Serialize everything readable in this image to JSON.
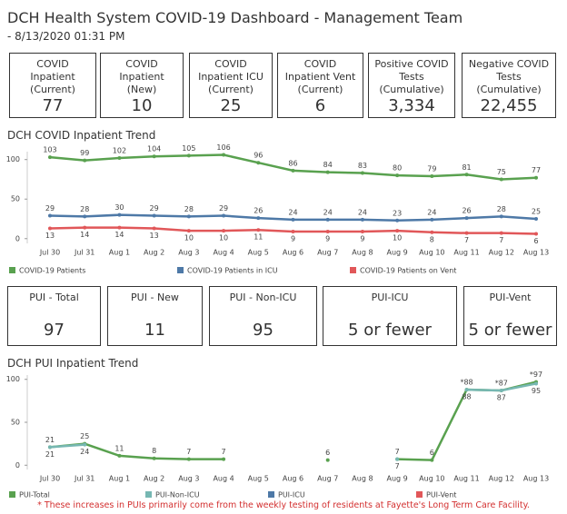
{
  "header": {
    "title": "DCH Health System COVID-19 Dashboard - Management Team",
    "subtitle": "- 8/13/2020 01:31 PM"
  },
  "cards_top": [
    {
      "label": "COVID Inpatient (Current)",
      "value": 77
    },
    {
      "label": "COVID Inpatient (New)",
      "value": 10
    },
    {
      "label": "COVID Inpatient ICU (Current)",
      "value": 25
    },
    {
      "label": "COVID Inpatient Vent (Current)",
      "value": 6
    },
    {
      "label": "Positive COVID Tests (Cumulative)",
      "value": "3,334"
    },
    {
      "label": "Negative COVID Tests (Cumulative)",
      "value": "22,455"
    }
  ],
  "cards_pui": [
    {
      "label": "PUI - Total",
      "value": 97
    },
    {
      "label": "PUI - New",
      "value": 11
    },
    {
      "label": "PUI - Non-ICU",
      "value": 95
    },
    {
      "label": "PUI-ICU",
      "value": "5 or fewer"
    },
    {
      "label": "PUI-Vent",
      "value": "5 or fewer"
    }
  ],
  "chart_data": [
    {
      "type": "line",
      "title": "DCH COVID Inpatient Trend",
      "categories": [
        "Jul 30",
        "Jul 31",
        "Aug 1",
        "Aug 2",
        "Aug 3",
        "Aug 4",
        "Aug 5",
        "Aug 6",
        "Aug 7",
        "Aug 8",
        "Aug 9",
        "Aug 10",
        "Aug 11",
        "Aug 12",
        "Aug 13"
      ],
      "ylim": [
        -6,
        110
      ],
      "yticks": [
        0,
        50,
        100
      ],
      "series": [
        {
          "name": "COVID-19 Patients",
          "color": "#59a14f",
          "label_pos": "above",
          "values": [
            103,
            99,
            102,
            104,
            105,
            106,
            96,
            86,
            84,
            83,
            80,
            79,
            81,
            75,
            77
          ]
        },
        {
          "name": "COVID-19 Patients in ICU",
          "color": "#4e79a7",
          "label_pos": "above",
          "values": [
            29,
            28,
            30,
            29,
            28,
            29,
            26,
            24,
            24,
            24,
            23,
            24,
            26,
            28,
            25
          ]
        },
        {
          "name": "COVID-19 Patients on Vent",
          "color": "#e15759",
          "label_pos": "below",
          "values": [
            13,
            14,
            14,
            13,
            10,
            10,
            11,
            9,
            9,
            9,
            10,
            8,
            7,
            7,
            6
          ]
        }
      ]
    },
    {
      "type": "line",
      "title": "DCH PUI Inpatient Trend",
      "categories": [
        "Jul 30",
        "Jul 31",
        "Aug 1",
        "Aug 2",
        "Aug 3",
        "Aug 4",
        "Aug 5",
        "Aug 6",
        "Aug 7",
        "Aug 8",
        "Aug 9",
        "Aug 10",
        "Aug 11",
        "Aug 12",
        "Aug 13"
      ],
      "ylim": [
        -5,
        105
      ],
      "yticks": [
        0,
        50,
        100
      ],
      "series": [
        {
          "name": "PUI-Total",
          "color": "#59a14f",
          "label_pos": "above",
          "values": [
            21,
            25,
            11,
            8,
            7,
            7,
            null,
            null,
            6,
            null,
            7,
            6,
            88,
            87,
            97
          ],
          "value_labels": [
            "21",
            "25",
            "11",
            "8",
            "7",
            "7",
            null,
            null,
            "6",
            null,
            "7",
            "6",
            "*88",
            "*87",
            "*97"
          ]
        },
        {
          "name": "PUI-Non-ICU",
          "color": "#76b7b2",
          "label_pos": "below",
          "values": [
            21,
            24,
            null,
            null,
            null,
            null,
            null,
            null,
            null,
            null,
            7,
            null,
            88,
            87,
            95
          ]
        },
        {
          "name": "PUI-ICU",
          "color": "#4e79a7",
          "label_pos": "below",
          "values": [
            null,
            null,
            null,
            null,
            null,
            null,
            null,
            null,
            null,
            null,
            null,
            null,
            null,
            null,
            null
          ]
        },
        {
          "name": "PUI-Vent",
          "color": "#e15759",
          "label_pos": "below",
          "values": [
            null,
            null,
            null,
            null,
            null,
            null,
            null,
            null,
            null,
            null,
            null,
            null,
            null,
            null,
            null
          ]
        }
      ]
    }
  ],
  "footnote": "* These increases in PUIs primarily come from the weekly testing of residents at Fayette's Long Term Care Facility."
}
